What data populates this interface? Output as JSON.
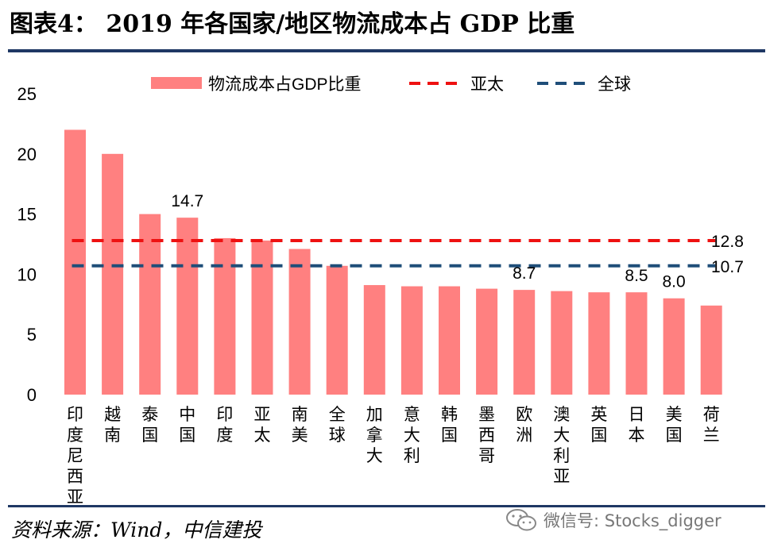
{
  "header": {
    "title": "图表4：  2019 年各国家/地区物流成本占 GDP 比重"
  },
  "footer": {
    "source": "资料来源：Wind，中信建投",
    "watermark": "微信号: Stocks_digger",
    "watermark_icon": "wechat-icon"
  },
  "colors": {
    "bar": "#ff8080",
    "apac_line": "#ee1111",
    "global_line": "#1f4e79",
    "rule": "#1f3864"
  },
  "chart_data": {
    "type": "bar",
    "categories": [
      "印度尼西亚",
      "越南",
      "泰国",
      "中国",
      "印度",
      "亚太",
      "南美",
      "全球",
      "加拿大",
      "意大利",
      "韩国",
      "墨西哥",
      "欧洲",
      "澳大利亚",
      "英国",
      "日本",
      "美国",
      "荷兰"
    ],
    "series": [
      {
        "name": "物流成本占GDP比重",
        "values": [
          22.0,
          20.0,
          15.0,
          14.7,
          13.0,
          12.8,
          12.1,
          10.7,
          9.1,
          9.0,
          9.0,
          8.8,
          8.7,
          8.6,
          8.5,
          8.5,
          8.0,
          7.4
        ]
      }
    ],
    "reference_lines": [
      {
        "name": "亚太",
        "value": 12.8,
        "label": "12.8",
        "style": "dashed",
        "color": "#ee1111"
      },
      {
        "name": "全球",
        "value": 10.7,
        "label": "10.7",
        "style": "dashed",
        "color": "#1f4e79"
      }
    ],
    "data_labels": [
      {
        "category": "中国",
        "text": "14.7"
      },
      {
        "category": "欧洲",
        "text": "8.7"
      },
      {
        "category": "日本",
        "text": "8.5"
      },
      {
        "category": "美国",
        "text": "8.0"
      }
    ],
    "yticks": [
      "0",
      "5",
      "10",
      "15",
      "20",
      "25"
    ],
    "ylim": [
      0,
      25
    ],
    "legend_position": "top",
    "grid": false
  }
}
